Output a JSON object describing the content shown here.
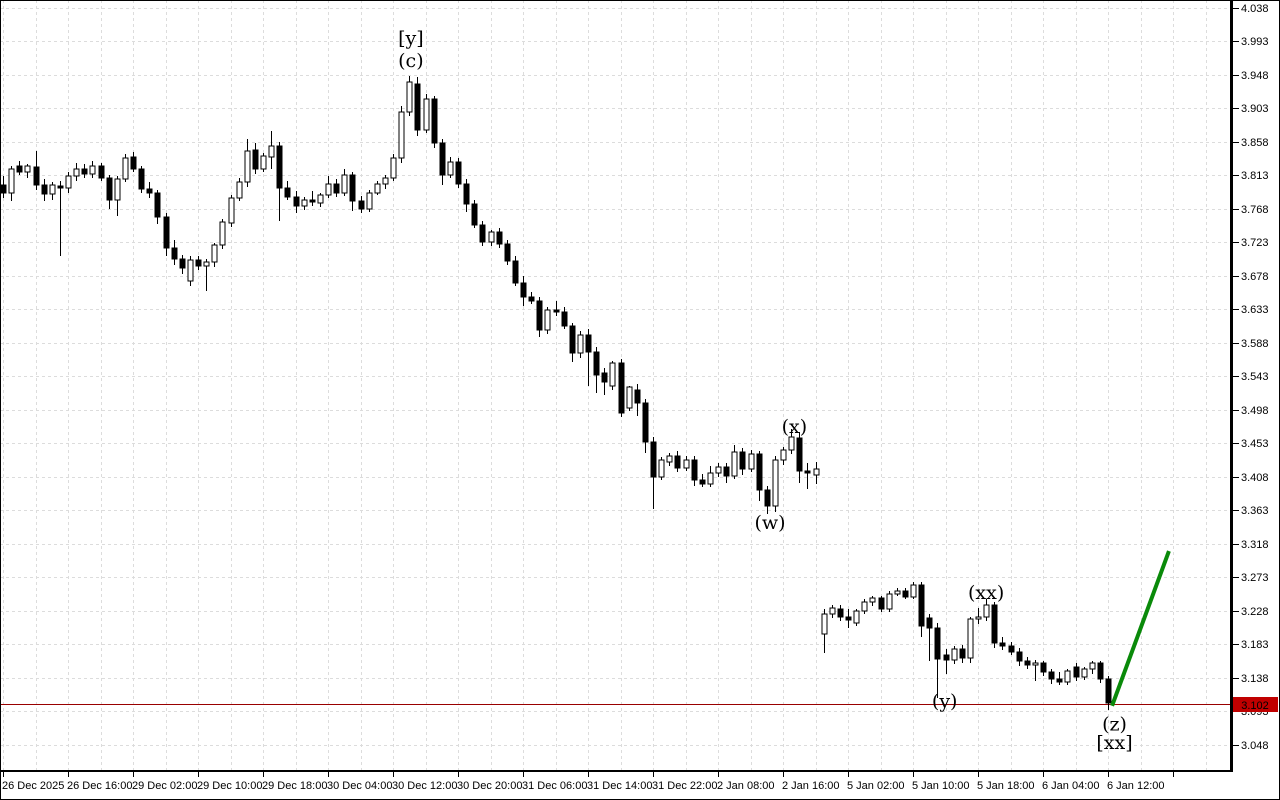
{
  "chart_data": {
    "type": "candlestick",
    "title": "",
    "y_axis": {
      "side": "right",
      "top_price": 4.038,
      "tick_step": 0.045,
      "tick_labels": [
        "4.038",
        "3.993",
        "3.948",
        "3.903",
        "3.858",
        "3.813",
        "3.768",
        "3.723",
        "3.678",
        "3.633",
        "3.588",
        "3.543",
        "3.498",
        "3.453",
        "3.408",
        "3.363",
        "3.318",
        "3.273",
        "3.228",
        "3.183",
        "3.138",
        "3.093",
        "3.048"
      ]
    },
    "x_axis": {
      "bars_per_label": 8,
      "tick_labels": [
        "26 Dec 2025",
        "26 Dec 16:00",
        "29 Dec 02:00",
        "29 Dec 10:00",
        "29 Dec 18:00",
        "30 Dec 04:00",
        "30 Dec 12:00",
        "30 Dec 20:00",
        "31 Dec 06:00",
        "31 Dec 14:00",
        "31 Dec 22:00",
        "2 Jan 08:00",
        "2 Jan 16:00",
        "5 Jan 02:00",
        "5 Jan 10:00",
        "5 Jan 18:00",
        "6 Jan 04:00",
        "6 Jan 12:00"
      ]
    },
    "grid": {
      "visible": true,
      "style": "dashed"
    },
    "candles_ohlc": [
      [
        3.8,
        3.812,
        3.782,
        3.79
      ],
      [
        3.79,
        3.826,
        3.778,
        3.822
      ],
      [
        3.826,
        3.832,
        3.814,
        3.818
      ],
      [
        3.818,
        3.828,
        3.81,
        3.825
      ],
      [
        3.824,
        3.846,
        3.794,
        3.8
      ],
      [
        3.8,
        3.808,
        3.778,
        3.788
      ],
      [
        3.788,
        3.804,
        3.78,
        3.8
      ],
      [
        3.799,
        3.806,
        3.705,
        3.796
      ],
      [
        3.796,
        3.818,
        3.79,
        3.812
      ],
      [
        3.812,
        3.83,
        3.806,
        3.822
      ],
      [
        3.822,
        3.828,
        3.81,
        3.815
      ],
      [
        3.815,
        3.832,
        3.809,
        3.826
      ],
      [
        3.826,
        3.83,
        3.806,
        3.81
      ],
      [
        3.81,
        3.814,
        3.768,
        3.78
      ],
      [
        3.78,
        3.812,
        3.758,
        3.808
      ],
      [
        3.808,
        3.842,
        3.804,
        3.837
      ],
      [
        3.838,
        3.844,
        3.818,
        3.821
      ],
      [
        3.822,
        3.826,
        3.79,
        3.795
      ],
      [
        3.795,
        3.804,
        3.783,
        3.789
      ],
      [
        3.79,
        3.794,
        3.748,
        3.757
      ],
      [
        3.757,
        3.762,
        3.705,
        3.716
      ],
      [
        3.716,
        3.726,
        3.693,
        3.701
      ],
      [
        3.701,
        3.706,
        3.68,
        3.688
      ],
      [
        3.671,
        3.704,
        3.665,
        3.699
      ],
      [
        3.699,
        3.704,
        3.686,
        3.691
      ],
      [
        3.691,
        3.7,
        3.658,
        3.697
      ],
      [
        3.697,
        3.722,
        3.69,
        3.719
      ],
      [
        3.72,
        3.754,
        3.714,
        3.75
      ],
      [
        3.749,
        3.786,
        3.744,
        3.783
      ],
      [
        3.783,
        3.81,
        3.778,
        3.804
      ],
      [
        3.804,
        3.862,
        3.798,
        3.846
      ],
      [
        3.847,
        3.856,
        3.815,
        3.821
      ],
      [
        3.821,
        3.843,
        3.817,
        3.839
      ],
      [
        3.838,
        3.873,
        3.822,
        3.852
      ],
      [
        3.852,
        3.858,
        3.752,
        3.796
      ],
      [
        3.796,
        3.806,
        3.78,
        3.784
      ],
      [
        3.784,
        3.792,
        3.762,
        3.772
      ],
      [
        3.772,
        3.784,
        3.766,
        3.78
      ],
      [
        3.78,
        3.792,
        3.772,
        3.777
      ],
      [
        3.776,
        3.79,
        3.77,
        3.786
      ],
      [
        3.786,
        3.812,
        3.782,
        3.802
      ],
      [
        3.802,
        3.808,
        3.784,
        3.789
      ],
      [
        3.789,
        3.822,
        3.785,
        3.813
      ],
      [
        3.813,
        3.818,
        3.765,
        3.779
      ],
      [
        3.779,
        3.785,
        3.762,
        3.768
      ],
      [
        3.768,
        3.794,
        3.764,
        3.79
      ],
      [
        3.79,
        3.806,
        3.786,
        3.801
      ],
      [
        3.801,
        3.814,
        3.795,
        3.81
      ],
      [
        3.81,
        3.842,
        3.806,
        3.836
      ],
      [
        3.836,
        3.906,
        3.83,
        3.898
      ],
      [
        3.898,
        3.947,
        3.893,
        3.938
      ],
      [
        3.936,
        3.945,
        3.866,
        3.874
      ],
      [
        3.874,
        3.922,
        3.87,
        3.916
      ],
      [
        3.916,
        3.92,
        3.85,
        3.856
      ],
      [
        3.856,
        3.862,
        3.8,
        3.814
      ],
      [
        3.814,
        3.838,
        3.81,
        3.831
      ],
      [
        3.831,
        3.836,
        3.796,
        3.801
      ],
      [
        3.801,
        3.808,
        3.764,
        3.774
      ],
      [
        3.774,
        3.78,
        3.742,
        3.746
      ],
      [
        3.746,
        3.752,
        3.718,
        3.724
      ],
      [
        3.724,
        3.74,
        3.718,
        3.737
      ],
      [
        3.737,
        3.742,
        3.716,
        3.721
      ],
      [
        3.721,
        3.726,
        3.692,
        3.698
      ],
      [
        3.698,
        3.704,
        3.664,
        3.669
      ],
      [
        3.669,
        3.678,
        3.638,
        3.65
      ],
      [
        3.65,
        3.656,
        3.64,
        3.644
      ],
      [
        3.644,
        3.65,
        3.596,
        3.605
      ],
      [
        3.605,
        3.636,
        3.6,
        3.632
      ],
      [
        3.632,
        3.644,
        3.624,
        3.63
      ],
      [
        3.63,
        3.636,
        3.606,
        3.61
      ],
      [
        3.61,
        3.615,
        3.562,
        3.574
      ],
      [
        3.574,
        3.604,
        3.568,
        3.598
      ],
      [
        3.598,
        3.606,
        3.53,
        3.576
      ],
      [
        3.576,
        3.582,
        3.52,
        3.545
      ],
      [
        3.548,
        3.554,
        3.518,
        3.535
      ],
      [
        3.53,
        3.564,
        3.524,
        3.561
      ],
      [
        3.561,
        3.566,
        3.488,
        3.494
      ],
      [
        3.501,
        3.53,
        3.496,
        3.528
      ],
      [
        3.525,
        3.532,
        3.49,
        3.507
      ],
      [
        3.507,
        3.512,
        3.44,
        3.455
      ],
      [
        3.455,
        3.462,
        3.365,
        3.408
      ],
      [
        3.408,
        3.434,
        3.404,
        3.43
      ],
      [
        3.428,
        3.44,
        3.422,
        3.436
      ],
      [
        3.436,
        3.442,
        3.414,
        3.42
      ],
      [
        3.42,
        3.436,
        3.416,
        3.431
      ],
      [
        3.431,
        3.436,
        3.395,
        3.404
      ],
      [
        3.404,
        3.412,
        3.394,
        3.398
      ],
      [
        3.398,
        3.422,
        3.394,
        3.413
      ],
      [
        3.413,
        3.426,
        3.408,
        3.421
      ],
      [
        3.421,
        3.426,
        3.4,
        3.409
      ],
      [
        3.409,
        3.451,
        3.405,
        3.441
      ],
      [
        3.441,
        3.446,
        3.41,
        3.419
      ],
      [
        3.419,
        3.444,
        3.415,
        3.438
      ],
      [
        3.438,
        3.442,
        3.375,
        3.39
      ],
      [
        3.39,
        3.396,
        3.358,
        3.369
      ],
      [
        3.369,
        3.436,
        3.36,
        3.43
      ],
      [
        3.43,
        3.448,
        3.424,
        3.444
      ],
      [
        3.444,
        3.472,
        3.438,
        3.461
      ],
      [
        3.46,
        3.468,
        3.4,
        3.416
      ],
      [
        3.416,
        3.426,
        3.392,
        3.413
      ],
      [
        3.41,
        3.428,
        3.398,
        3.418
      ],
      [
        3.197,
        3.23,
        3.171,
        3.224
      ],
      [
        3.224,
        3.236,
        3.218,
        3.232
      ],
      [
        3.23,
        3.236,
        3.214,
        3.219
      ],
      [
        3.219,
        3.23,
        3.205,
        3.215
      ],
      [
        3.212,
        3.23,
        3.208,
        3.228
      ],
      [
        3.228,
        3.244,
        3.224,
        3.24
      ],
      [
        3.24,
        3.248,
        3.234,
        3.245
      ],
      [
        3.245,
        3.248,
        3.226,
        3.23
      ],
      [
        3.23,
        3.254,
        3.226,
        3.251
      ],
      [
        3.251,
        3.258,
        3.248,
        3.254
      ],
      [
        3.254,
        3.258,
        3.244,
        3.247
      ],
      [
        3.247,
        3.266,
        3.243,
        3.262
      ],
      [
        3.262,
        3.266,
        3.192,
        3.208
      ],
      [
        3.218,
        3.224,
        3.16,
        3.205
      ],
      [
        3.205,
        3.212,
        3.11,
        3.163
      ],
      [
        3.169,
        3.176,
        3.143,
        3.161
      ],
      [
        3.161,
        3.18,
        3.156,
        3.177
      ],
      [
        3.177,
        3.182,
        3.158,
        3.164
      ],
      [
        3.164,
        3.22,
        3.158,
        3.217
      ],
      [
        3.217,
        3.232,
        3.21,
        3.22
      ],
      [
        3.22,
        3.243,
        3.214,
        3.235
      ],
      [
        3.235,
        3.24,
        3.178,
        3.185
      ],
      [
        3.185,
        3.192,
        3.175,
        3.18
      ],
      [
        3.18,
        3.186,
        3.168,
        3.172
      ],
      [
        3.172,
        3.178,
        3.154,
        3.16
      ],
      [
        3.16,
        3.166,
        3.15,
        3.155
      ],
      [
        3.155,
        3.162,
        3.134,
        3.158
      ],
      [
        3.158,
        3.16,
        3.14,
        3.146
      ],
      [
        3.146,
        3.15,
        3.13,
        3.136
      ],
      [
        3.136,
        3.146,
        3.128,
        3.132
      ],
      [
        3.132,
        3.15,
        3.128,
        3.147
      ],
      [
        3.152,
        3.158,
        3.134,
        3.139
      ],
      [
        3.139,
        3.152,
        3.135,
        3.15
      ],
      [
        3.15,
        3.16,
        3.143,
        3.157
      ],
      [
        3.157,
        3.16,
        3.131,
        3.136
      ],
      [
        3.136,
        3.14,
        3.094,
        3.104
      ]
    ],
    "wave_labels": [
      {
        "text": "[y]",
        "style": "green",
        "bar": 50.2,
        "price": 3.997
      },
      {
        "text": "(c)",
        "style": "blue",
        "bar": 50.2,
        "price": 3.967
      },
      {
        "text": "(x)",
        "style": "blue",
        "bar": 97.4,
        "price": 3.475
      },
      {
        "text": "(w)",
        "style": "blue",
        "bar": 94.4,
        "price": 3.346
      },
      {
        "text": "(xx)",
        "style": "blue",
        "bar": 121.0,
        "price": 3.252
      },
      {
        "text": "(y)",
        "style": "blue",
        "bar": 115.9,
        "price": 3.106
      },
      {
        "text": "(z)",
        "style": "blue",
        "bar": 136.8,
        "price": 3.075
      },
      {
        "text": "[xx]",
        "style": "green",
        "bar": 136.8,
        "price": 3.05
      }
    ],
    "price_line": {
      "value": 3.102,
      "tag_label": "3.102"
    },
    "trend_line": {
      "from_bar": 136.5,
      "from_price": 3.1,
      "to_bar": 143.5,
      "to_price": 3.308
    }
  },
  "colors": {
    "background": "#FFFFFF",
    "grid": "#DCDCDC",
    "outline": "#000000",
    "bull_body": "#FFFFFF",
    "bear_body": "#000000",
    "blue_label": "#2626CC",
    "green_label": "#2EB82E",
    "trend_line": "#0A8A0A",
    "price_line": "#990000",
    "tag_bg": "#C00000",
    "tag_text": "#FFFFFF",
    "axis_text": "#000000"
  }
}
